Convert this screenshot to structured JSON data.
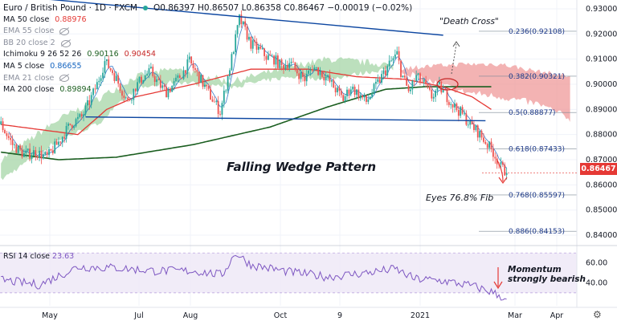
{
  "header": {
    "symbol": "Euro / British Pound · 1D · FXCM",
    "ohlc": "O0.86397 H0.86507 L0.86358 C0.86467 −0.00019 (−0.02%)"
  },
  "indicators": [
    {
      "label": "MA 50 close",
      "value": "0.88976",
      "color": "#e53935",
      "hidden": false
    },
    {
      "label": "EMA 55 close",
      "value": "",
      "color": "#8a8f9c",
      "hidden": true
    },
    {
      "label": "BB 20 close 2",
      "value": "",
      "color": "#8a8f9c",
      "hidden": true
    },
    {
      "label": "Ichimoku 9 26 52 26",
      "value": "0.90116",
      "value2": "0.90454",
      "color": "#1b5e20",
      "color2": "#c62828",
      "hidden": false
    },
    {
      "label": "MA 5 close",
      "value": "0.86655",
      "color": "#1565c0",
      "hidden": false
    },
    {
      "label": "EMA 21 close",
      "value": "",
      "color": "#8a8f9c",
      "hidden": true
    },
    {
      "label": "MA 200 close",
      "value": "0.89894",
      "color": "#1b5e20",
      "hidden": false
    }
  ],
  "rsi": {
    "label": "RSI 14 close",
    "value": "23.63",
    "color": "#7e57c2"
  },
  "annotations": {
    "pattern": "Falling Wedge Pattern",
    "death_cross": "\"Death Cross\"",
    "target": "Eyes 76.8% Fib",
    "momentum_1": "Momentum",
    "momentum_2": "strongly bearish"
  },
  "last_price": "0.86467",
  "colors": {
    "up": "#26a69a",
    "down": "#ef5350",
    "kumo_bull": "#a5d6a7",
    "kumo_bear": "#ef9a9a",
    "ma50": "#e53935",
    "ma200": "#1b5e20",
    "ma5": "#1565c0",
    "trendline": "#0d47a1",
    "rsi": "#7e57c2",
    "rsi_band": "#ede7f6"
  },
  "chart_data": [
    {
      "type": "candlestick",
      "x_tick_labels": [
        "May",
        "Jul",
        "Aug",
        "Oct",
        "9",
        "2021",
        "Mar",
        "Apr"
      ],
      "y_ticks": [
        "0.93000",
        "0.92000",
        "0.91000",
        "0.90000",
        "0.89000",
        "0.88000",
        "0.87000",
        "0.86000",
        "0.85000",
        "0.84000"
      ],
      "ylim": [
        0.8365,
        0.9335
      ],
      "fib_levels": [
        {
          "ratio": "0.236",
          "price": 0.92108,
          "label": "0.236(0.92108)"
        },
        {
          "ratio": "0.382",
          "price": 0.90321,
          "label": "0.382(0.90321)"
        },
        {
          "ratio": "0.5",
          "price": 0.88877,
          "label": "0.5(0.88877)"
        },
        {
          "ratio": "0.618",
          "price": 0.87433,
          "label": "0.618(0.87433)"
        },
        {
          "ratio": "0.768",
          "price": 0.85597,
          "label": "0.768(0.85597)"
        },
        {
          "ratio": "0.886",
          "price": 0.84153,
          "label": "0.886(0.84153)"
        }
      ],
      "price_path": [
        [
          0,
          0.884
        ],
        [
          6,
          0.876
        ],
        [
          12,
          0.872
        ],
        [
          18,
          0.873
        ],
        [
          24,
          0.871
        ],
        [
          30,
          0.877
        ],
        [
          36,
          0.884
        ],
        [
          42,
          0.887
        ],
        [
          46,
          0.893
        ],
        [
          50,
          0.9
        ],
        [
          54,
          0.909
        ],
        [
          58,
          0.905
        ],
        [
          62,
          0.899
        ],
        [
          66,
          0.893
        ],
        [
          70,
          0.899
        ],
        [
          74,
          0.903
        ],
        [
          78,
          0.905
        ],
        [
          82,
          0.9
        ],
        [
          86,
          0.897
        ],
        [
          90,
          0.9
        ],
        [
          94,
          0.904
        ],
        [
          98,
          0.909
        ],
        [
          102,
          0.904
        ],
        [
          106,
          0.899
        ],
        [
          110,
          0.894
        ],
        [
          114,
          0.889
        ],
        [
          118,
          0.903
        ],
        [
          122,
          0.918
        ],
        [
          124,
          0.926
        ],
        [
          126,
          0.923
        ],
        [
          130,
          0.916
        ],
        [
          134,
          0.914
        ],
        [
          138,
          0.911
        ],
        [
          142,
          0.91
        ],
        [
          146,
          0.907
        ],
        [
          150,
          0.909
        ],
        [
          154,
          0.905
        ],
        [
          158,
          0.902
        ],
        [
          162,
          0.907
        ],
        [
          166,
          0.905
        ],
        [
          170,
          0.902
        ],
        [
          174,
          0.898
        ],
        [
          178,
          0.894
        ],
        [
          182,
          0.899
        ],
        [
          186,
          0.896
        ],
        [
          190,
          0.893
        ],
        [
          194,
          0.898
        ],
        [
          198,
          0.903
        ],
        [
          202,
          0.908
        ],
        [
          206,
          0.912
        ],
        [
          208,
          0.905
        ],
        [
          212,
          0.897
        ],
        [
          216,
          0.903
        ],
        [
          220,
          0.9
        ],
        [
          224,
          0.895
        ],
        [
          228,
          0.899
        ],
        [
          232,
          0.895
        ],
        [
          236,
          0.891
        ],
        [
          240,
          0.888
        ],
        [
          244,
          0.884
        ],
        [
          248,
          0.881
        ],
        [
          252,
          0.877
        ],
        [
          256,
          0.873
        ],
        [
          260,
          0.867
        ],
        [
          263,
          0.8647
        ]
      ],
      "ma50_path": [
        [
          0,
          0.884
        ],
        [
          40,
          0.88
        ],
        [
          55,
          0.89
        ],
        [
          70,
          0.895
        ],
        [
          100,
          0.9
        ],
        [
          130,
          0.906
        ],
        [
          160,
          0.906
        ],
        [
          185,
          0.903
        ],
        [
          210,
          0.902
        ],
        [
          230,
          0.899
        ],
        [
          245,
          0.895
        ],
        [
          255,
          0.89
        ]
      ],
      "ma200_path": [
        [
          0,
          0.873
        ],
        [
          30,
          0.87
        ],
        [
          60,
          0.871
        ],
        [
          100,
          0.876
        ],
        [
          140,
          0.883
        ],
        [
          170,
          0.891
        ],
        [
          200,
          0.898
        ],
        [
          220,
          0.899
        ],
        [
          240,
          0.899
        ],
        [
          255,
          0.899
        ]
      ],
      "kumo_a_path": [
        [
          0,
          0.87
        ],
        [
          30,
          0.886
        ],
        [
          50,
          0.894
        ],
        [
          70,
          0.903
        ],
        [
          90,
          0.906
        ],
        [
          120,
          0.901
        ],
        [
          150,
          0.907
        ],
        [
          170,
          0.91
        ],
        [
          200,
          0.908
        ],
        [
          220,
          0.902
        ],
        [
          240,
          0.897
        ],
        [
          260,
          0.895
        ],
        [
          280,
          0.892
        ],
        [
          297,
          0.886
        ]
      ],
      "kumo_b_path": [
        [
          0,
          0.862
        ],
        [
          30,
          0.878
        ],
        [
          50,
          0.884
        ],
        [
          70,
          0.898
        ],
        [
          90,
          0.901
        ],
        [
          120,
          0.899
        ],
        [
          150,
          0.903
        ],
        [
          170,
          0.902
        ],
        [
          200,
          0.906
        ],
        [
          220,
          0.907
        ],
        [
          240,
          0.908
        ],
        [
          260,
          0.908
        ],
        [
          280,
          0.905
        ],
        [
          297,
          0.903
        ]
      ],
      "trendline_upper": [
        [
          0.9355,
          0
        ],
        [
          0.9195,
          230
        ]
      ],
      "trendline_lower": [
        [
          0.887,
          44
        ],
        [
          0.8855,
          252
        ]
      ],
      "rsi_path": [
        [
          0,
          43
        ],
        [
          20,
          38
        ],
        [
          40,
          56
        ],
        [
          60,
          55
        ],
        [
          80,
          52
        ],
        [
          100,
          52
        ],
        [
          115,
          48
        ],
        [
          122,
          70
        ],
        [
          130,
          58
        ],
        [
          150,
          51
        ],
        [
          170,
          46
        ],
        [
          190,
          50
        ],
        [
          205,
          54
        ],
        [
          215,
          44
        ],
        [
          230,
          42
        ],
        [
          245,
          37
        ],
        [
          255,
          31
        ],
        [
          263,
          23.63
        ]
      ],
      "rsi_ticks": [
        "60.00",
        "40.00"
      ],
      "rsi_ylim": [
        17,
        75
      ]
    }
  ]
}
